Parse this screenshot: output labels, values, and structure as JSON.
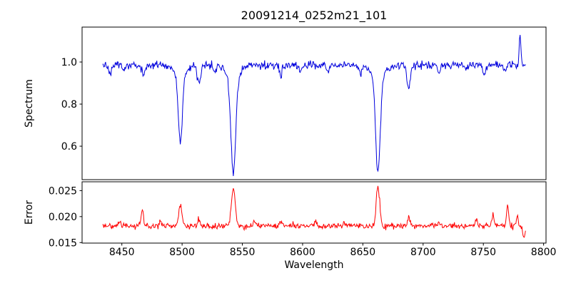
{
  "figure": {
    "title": "20091214_0252m21_101",
    "xlabel": "Wavelength",
    "panel_ylabels": [
      "Spectrum",
      "Error"
    ]
  },
  "chart_data": {
    "type": "line",
    "title": "20091214_0252m21_101",
    "xlabel": "Wavelength",
    "xlim": [
      8417,
      8802
    ],
    "x_data_range": [
      8434,
      8785
    ],
    "x_step": 0.5,
    "xticks": [
      8450,
      8500,
      8550,
      8600,
      8650,
      8700,
      8750,
      8800
    ],
    "xtick_labels": [
      "8450",
      "8500",
      "8550",
      "8600",
      "8650",
      "8700",
      "8750",
      "8800"
    ],
    "seed": 20091214,
    "grid": false,
    "legend": "none",
    "panels": [
      {
        "name": "spectrum",
        "ylabel": "Spectrum",
        "color": "#0000dd",
        "ylim": [
          0.441,
          1.166
        ],
        "yticks": [
          0.6,
          0.8,
          1.0
        ],
        "ytick_labels": [
          "0.6",
          "0.8",
          "1.0"
        ],
        "base": 0.985,
        "noise_sigma": 0.009,
        "features": [
          {
            "center": 8440,
            "amp": -0.04,
            "sigma": 1.2
          },
          {
            "center": 8452,
            "amp": -0.03,
            "sigma": 1.0
          },
          {
            "center": 8468,
            "amp": -0.05,
            "sigma": 1.2
          },
          {
            "center": 8498.5,
            "amp": -0.33,
            "sigma": 1.7
          },
          {
            "center": 8498.5,
            "amp": -0.04,
            "sigma": 5.0
          },
          {
            "center": 8514,
            "amp": -0.08,
            "sigma": 1.4
          },
          {
            "center": 8527,
            "amp": -0.035,
            "sigma": 1.0
          },
          {
            "center": 8542.5,
            "amp": -0.47,
            "sigma": 2.0
          },
          {
            "center": 8542.5,
            "amp": -0.05,
            "sigma": 6.0
          },
          {
            "center": 8582,
            "amp": -0.045,
            "sigma": 1.2
          },
          {
            "center": 8598,
            "amp": -0.035,
            "sigma": 1.0
          },
          {
            "center": 8621,
            "amp": -0.035,
            "sigma": 1.0
          },
          {
            "center": 8648,
            "amp": -0.03,
            "sigma": 1.0
          },
          {
            "center": 8662.5,
            "amp": -0.46,
            "sigma": 1.9
          },
          {
            "center": 8662.5,
            "amp": -0.05,
            "sigma": 6.0
          },
          {
            "center": 8688,
            "amp": -0.11,
            "sigma": 1.4
          },
          {
            "center": 8713,
            "amp": -0.04,
            "sigma": 1.1
          },
          {
            "center": 8736,
            "amp": -0.03,
            "sigma": 1.0
          },
          {
            "center": 8751,
            "amp": -0.045,
            "sigma": 1.1
          },
          {
            "center": 8768,
            "amp": -0.04,
            "sigma": 1.0
          },
          {
            "center": 8780.5,
            "amp": 0.145,
            "sigma": 0.7
          }
        ]
      },
      {
        "name": "error",
        "ylabel": "Error",
        "color": "#ff0000",
        "ylim": [
          0.0149,
          0.0267
        ],
        "yticks": [
          0.015,
          0.02,
          0.025
        ],
        "ytick_labels": [
          "0.015",
          "0.020",
          "0.025"
        ],
        "base": 0.0182,
        "noise_sigma": 0.00028,
        "features": [
          {
            "center": 8430,
            "amp": 0.0038,
            "sigma": 1.0
          },
          {
            "center": 8448,
            "amp": 0.0012,
            "sigma": 0.9
          },
          {
            "center": 8467,
            "amp": 0.003,
            "sigma": 1.0
          },
          {
            "center": 8482,
            "amp": 0.001,
            "sigma": 0.9
          },
          {
            "center": 8498.5,
            "amp": 0.004,
            "sigma": 1.3
          },
          {
            "center": 8514,
            "amp": 0.0012,
            "sigma": 1.0
          },
          {
            "center": 8542.5,
            "amp": 0.0072,
            "sigma": 1.6
          },
          {
            "center": 8560,
            "amp": 0.0008,
            "sigma": 1.0
          },
          {
            "center": 8582,
            "amp": 0.001,
            "sigma": 1.0
          },
          {
            "center": 8611,
            "amp": 0.0008,
            "sigma": 1.0
          },
          {
            "center": 8634,
            "amp": 0.0008,
            "sigma": 1.0
          },
          {
            "center": 8662.5,
            "amp": 0.0073,
            "sigma": 1.5
          },
          {
            "center": 8688,
            "amp": 0.0016,
            "sigma": 1.1
          },
          {
            "center": 8713,
            "amp": 0.0009,
            "sigma": 1.0
          },
          {
            "center": 8744,
            "amp": 0.001,
            "sigma": 1.0
          },
          {
            "center": 8758,
            "amp": 0.0022,
            "sigma": 1.0
          },
          {
            "center": 8770,
            "amp": 0.004,
            "sigma": 0.9
          },
          {
            "center": 8778,
            "amp": 0.0018,
            "sigma": 0.8
          },
          {
            "center": 8783.5,
            "amp": -0.0022,
            "sigma": 1.0
          }
        ]
      }
    ]
  }
}
